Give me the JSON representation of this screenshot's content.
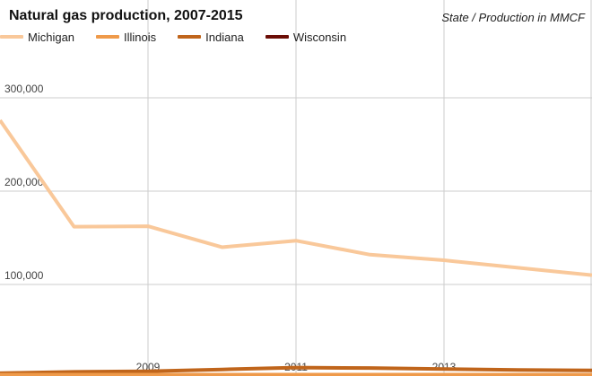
{
  "chart_data": {
    "type": "line",
    "title": "Natural gas production, 2007-2015",
    "subtitle": "State / Production in MMCF",
    "x": [
      2007,
      2008,
      2009,
      2010,
      2011,
      2012,
      2013,
      2014,
      2015
    ],
    "x_tick_labels": [
      "2009",
      "2011",
      "2013"
    ],
    "y_tick_labels": [
      "100,000",
      "200,000",
      "300,000"
    ],
    "ylim": [
      0,
      400000
    ],
    "grid": true,
    "legend_position": "top-left",
    "series": [
      {
        "name": "Michigan",
        "color": "#f9c89a",
        "values": [
          274000,
          160000,
          160500,
          138000,
          145000,
          130000,
          124000,
          116000,
          108000
        ]
      },
      {
        "name": "Illinois",
        "color": "#ef9a4a",
        "values": [
          1500,
          1500,
          1500,
          1500,
          1500,
          1500,
          1500,
          1500,
          1500
        ]
      },
      {
        "name": "Indiana",
        "color": "#c0651b",
        "values": [
          3000,
          4500,
          5000,
          7000,
          9000,
          8500,
          7500,
          6500,
          6000
        ]
      },
      {
        "name": "Wisconsin",
        "color": "#6b0d06",
        "values": [
          0,
          0,
          0,
          0,
          0,
          0,
          0,
          0,
          0
        ]
      }
    ]
  }
}
